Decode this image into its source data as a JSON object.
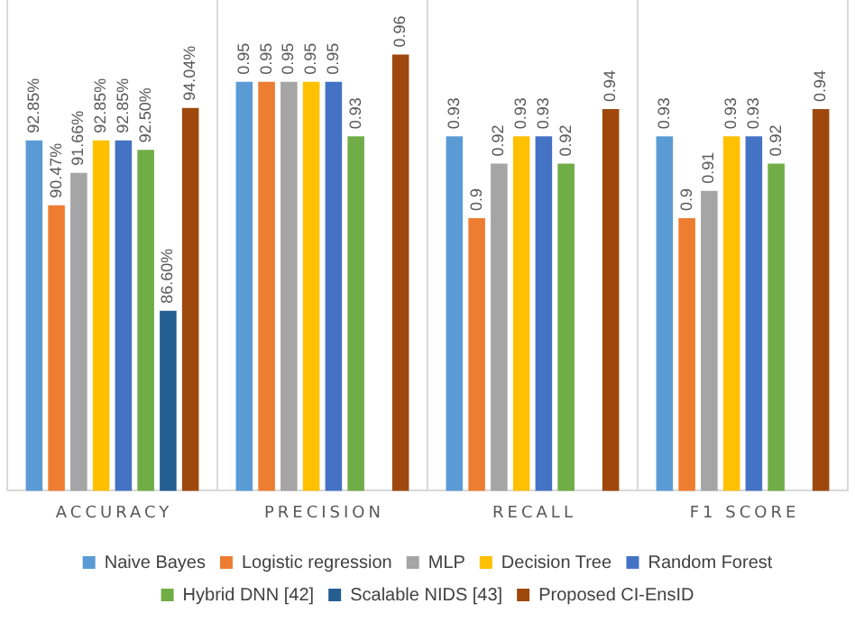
{
  "chart_data": {
    "type": "bar",
    "categories": [
      "ACCURACY",
      "PRECISION",
      "RECALL",
      "F1 SCORE"
    ],
    "ylim": [
      0.8,
      0.98
    ],
    "tick_labels": "x",
    "grid": "x",
    "legend": "bottom",
    "series": [
      {
        "name": "Naive Bayes",
        "color": "#5b9bd5",
        "values": [
          0.9285,
          0.95,
          0.93,
          0.93
        ],
        "value_labels": [
          "92.85%",
          "0.95",
          "0.93",
          "0.93"
        ]
      },
      {
        "name": "Logistic regression",
        "color": "#ed7d31",
        "values": [
          0.9047,
          0.95,
          0.9,
          0.9
        ],
        "value_labels": [
          "90.47%",
          "0.95",
          "0.9",
          "0.9"
        ]
      },
      {
        "name": "MLP",
        "color": "#a5a5a5",
        "values": [
          0.9166,
          0.95,
          0.92,
          0.91
        ],
        "value_labels": [
          "91.66%",
          "0.95",
          "0.92",
          "0.91"
        ]
      },
      {
        "name": "Decision Tree",
        "color": "#ffc000",
        "values": [
          0.9285,
          0.95,
          0.93,
          0.93
        ],
        "value_labels": [
          "92.85%",
          "0.95",
          "0.93",
          "0.93"
        ]
      },
      {
        "name": "Random Forest",
        "color": "#4472c4",
        "values": [
          0.9285,
          0.95,
          0.93,
          0.93
        ],
        "value_labels": [
          "92.85%",
          "0.95",
          "0.93",
          "0.93"
        ]
      },
      {
        "name": "Hybrid DNN [42]",
        "color": "#70ad47",
        "values": [
          0.925,
          0.93,
          0.92,
          0.92
        ],
        "value_labels": [
          "92.50%",
          "0.93",
          "0.92",
          "0.92"
        ]
      },
      {
        "name": "Scalable NIDS [43]",
        "color": "#255e91",
        "values": [
          0.866,
          null,
          null,
          null
        ],
        "value_labels": [
          "86.60%",
          null,
          null,
          null
        ]
      },
      {
        "name": "Proposed CI-EnsID",
        "color": "#9e480e",
        "values": [
          0.9404,
          0.96,
          0.94,
          0.94
        ],
        "value_labels": [
          "94.04%",
          "0.96",
          "0.94",
          "0.94"
        ]
      }
    ]
  }
}
